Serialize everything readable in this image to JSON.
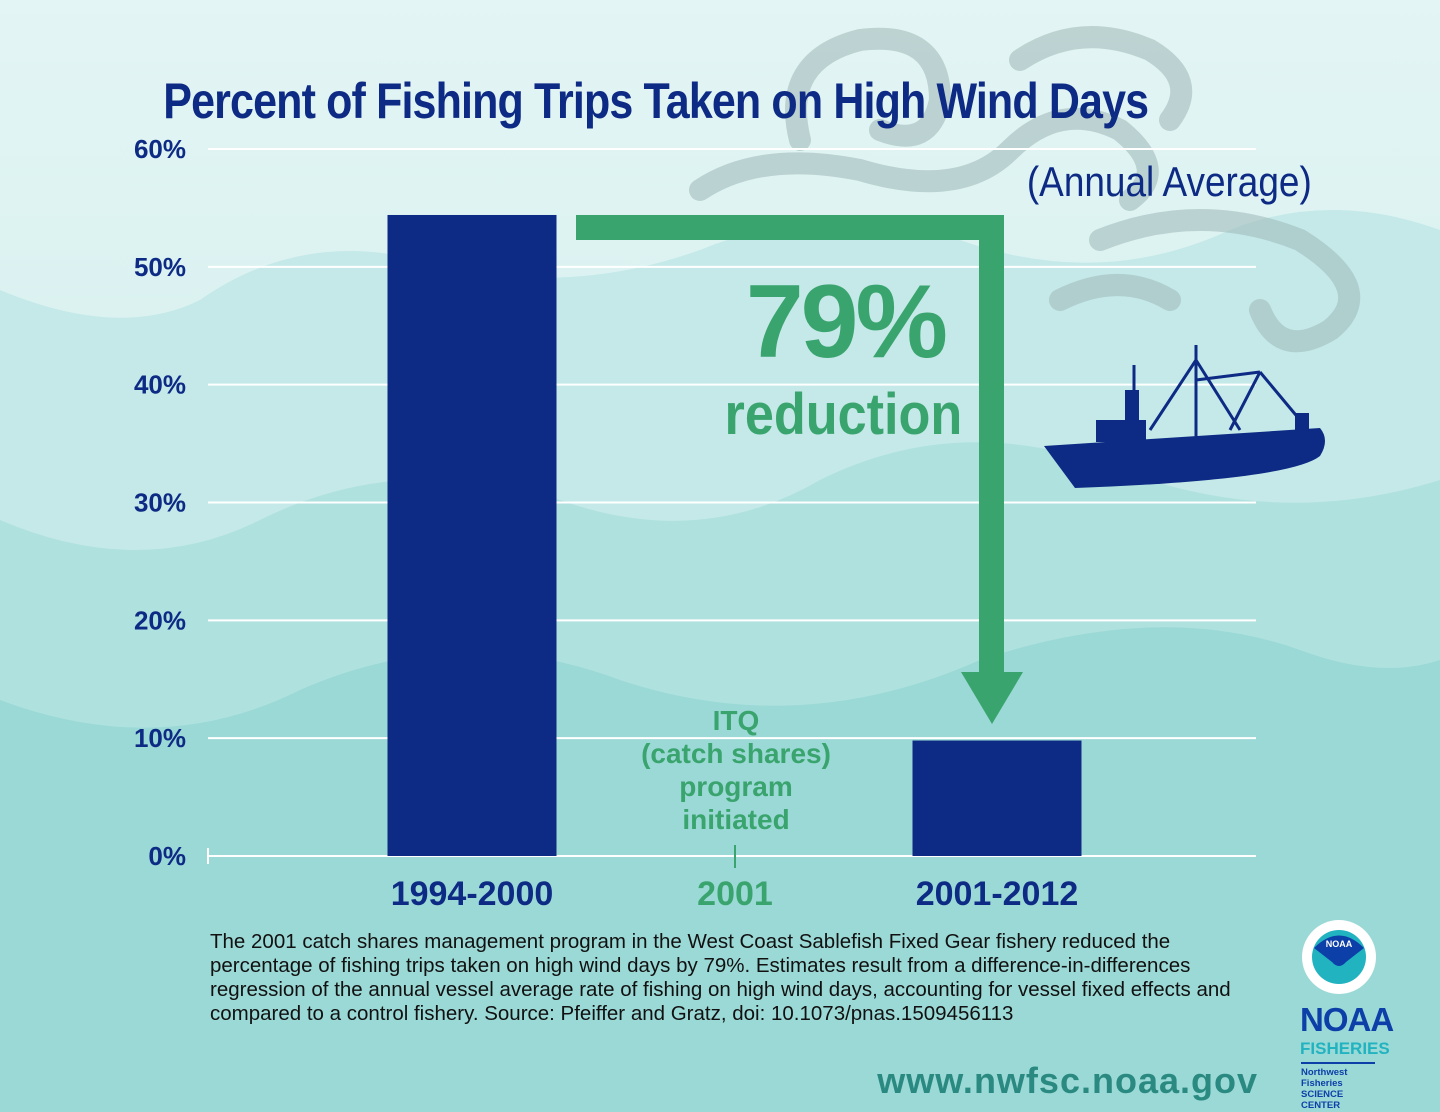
{
  "chart_data": {
    "type": "bar",
    "title": "Percent of Fishing Trips Taken on High Wind Days",
    "subtitle": "(Annual Average)",
    "categories": [
      "1994-2000",
      "2001",
      "2001-2012"
    ],
    "values": [
      54.4,
      null,
      9.8
    ],
    "ylim": [
      0,
      60
    ],
    "yticks": [
      "0%",
      "10%",
      "20%",
      "30%",
      "40%",
      "50%",
      "60%"
    ],
    "grid": true,
    "annotations": {
      "reduction_value": "79%",
      "reduction_label": "reduction",
      "event_label": [
        "ITQ",
        "(catch shares)",
        "program",
        "initiated"
      ]
    },
    "colors": {
      "bars": "#0d2a84",
      "annotation": "#3aa46e",
      "title": "#0d2a84"
    }
  },
  "footer": {
    "note": "The 2001 catch shares management program in the West Coast Sablefish Fixed Gear fishery reduced the percentage of fishing trips taken on high wind days by 79%. Estimates result from a difference-in-differences regression of the annual vessel average rate of fishing on high wind days, accounting for vessel fixed effects and compared to a control fishery. Source: Pfeiffer and Gratz, doi: 10.1073/pnas.1509456113",
    "url": "www.nwfsc.noaa.gov"
  },
  "logo": {
    "seal_text": "NOAA",
    "name": "NOAA",
    "division": "FISHERIES",
    "center_line1": "Northwest Fisheries",
    "center_line2": "SCIENCE CENTER"
  }
}
